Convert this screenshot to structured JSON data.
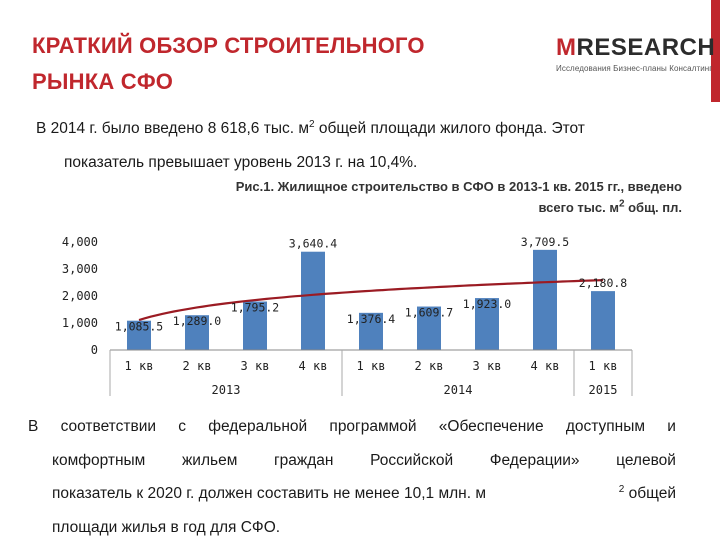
{
  "header": {
    "title": "КРАТКИЙ ОБЗОР СТРОИТЕЛЬНОГО РЫНКА СФО",
    "logo_m": "M",
    "logo_rest": "RESEARCH",
    "logo_tagline": "Исследования  Бизнес-планы  Консалтинг",
    "accent_color": "#c0272d"
  },
  "intro": {
    "line1_pre": "В 2014 г. было введено 8 618,6 тыс. м",
    "line1_sup": "2",
    "line1_post": " общей площади жилого фонда. Этот",
    "line2": "показатель превышает уровень 2013 г. на 10,4%."
  },
  "caption": {
    "line1": "Рис.1. Жилищное строительство в СФО в 2013-1 кв. 2015 гг., введено",
    "line2_pre": "всего тыс. м",
    "line2_sup": "2",
    "line2_post": " общ. пл."
  },
  "chart_data": {
    "type": "bar",
    "categories": [
      "1 кв",
      "2 кв",
      "3 кв",
      "4 кв",
      "1 кв",
      "2 кв",
      "3 кв",
      "4 кв",
      "1 кв"
    ],
    "year_groups": [
      {
        "label": "2013",
        "start": 0,
        "end": 3
      },
      {
        "label": "2014",
        "start": 4,
        "end": 7
      },
      {
        "label": "2015",
        "start": 8,
        "end": 8
      }
    ],
    "values": [
      1085.5,
      1289.0,
      1795.2,
      3640.4,
      1376.4,
      1609.7,
      1923.0,
      3709.5,
      2180.8
    ],
    "value_labels": [
      "1,085.5",
      "1,289.0",
      "1,795.2",
      "3,640.4",
      "1,376.4",
      "1,609.7",
      "1,923.0",
      "3,709.5",
      "2,180.8"
    ],
    "yticks": [
      0,
      1000,
      2000,
      3000,
      4000
    ],
    "ytick_labels": [
      "0",
      "1,000",
      "2,000",
      "3,000",
      "4,000"
    ],
    "ylim": [
      0,
      4000
    ],
    "trendline": {
      "type": "logarithmic",
      "color": "#9b1b23"
    },
    "bar_color": "#4f81bd",
    "grid": false,
    "legend": "none",
    "xlabel": "",
    "ylabel": ""
  },
  "conclusion": {
    "l1": [
      "В",
      "соответствии",
      "с",
      "федеральной",
      "программой",
      "«Обеспечение",
      "доступным",
      "и"
    ],
    "l2": [
      "комфортным",
      "жильем",
      "граждан",
      "Российской",
      "Федерации»",
      "целевой"
    ],
    "l3_pre": "показатель к 2020 г. должен составить не менее 10,1 млн. м",
    "l3_sup": "2",
    "l3_post": " общей",
    "l4": "площади жилья в год для СФО."
  }
}
